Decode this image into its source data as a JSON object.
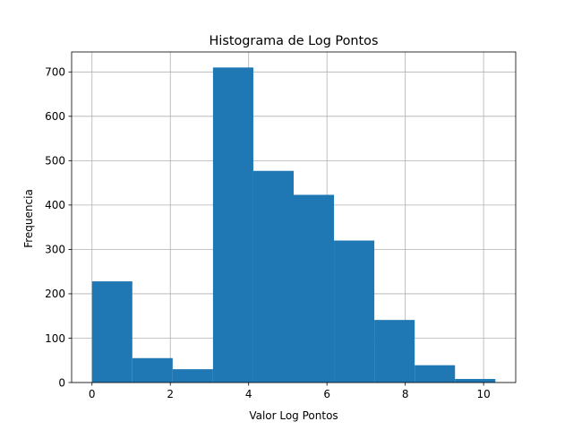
{
  "chart_data": {
    "type": "bar",
    "title": "Histograma de Log Pontos",
    "xlabel": "Valor Log Pontos",
    "ylabel": "Frequencia",
    "bin_edges": [
      0,
      1.03,
      2.06,
      3.09,
      4.12,
      5.15,
      6.18,
      7.21,
      8.24,
      9.27,
      10.3
    ],
    "values": [
      228,
      55,
      30,
      710,
      477,
      423,
      320,
      141,
      39,
      8
    ],
    "xlim": [
      -0.52,
      10.82
    ],
    "ylim": [
      0,
      745
    ],
    "xticks": [
      "0",
      "2",
      "4",
      "6",
      "8",
      "10"
    ],
    "yticks": [
      "0",
      "100",
      "200",
      "300",
      "400",
      "500",
      "600",
      "700"
    ],
    "grid": true,
    "bar_color": "#1f77b4",
    "grid_color": "#b0b0b0"
  }
}
